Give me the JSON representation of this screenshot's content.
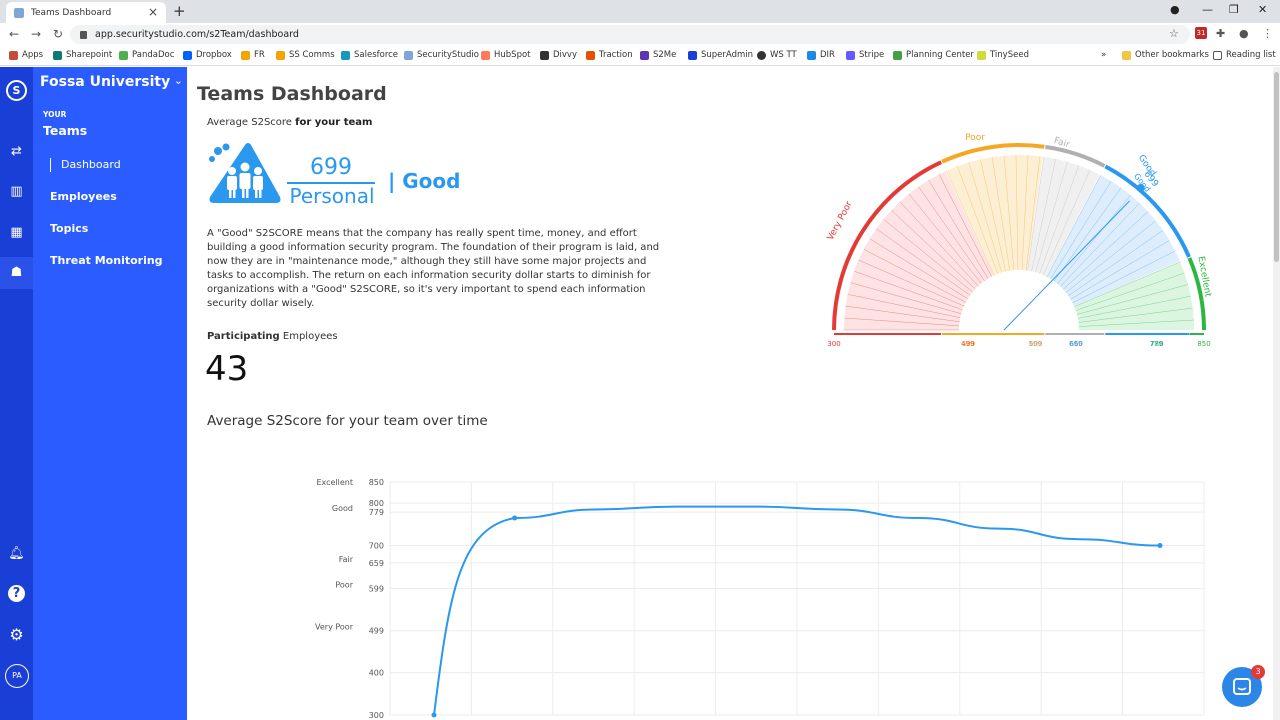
{
  "browser": {
    "tab_title": "Teams Dashboard",
    "url": "app.securitystudio.com/s2Team/dashboard",
    "bookmarks": [
      "Apps",
      "Sharepoint",
      "PandaDoc",
      "Dropbox",
      "FR",
      "SS Comms",
      "Salesforce",
      "SecurityStudio",
      "HubSpot",
      "Divvy",
      "Traction",
      "S2Me",
      "SuperAdmin",
      "WS TT",
      "DIR",
      "Stripe",
      "Planning Center",
      "TinySeed"
    ],
    "other_bookmarks": "Other bookmarks",
    "reading_list": "Reading list",
    "ext_badge": "31"
  },
  "sidebar": {
    "org": "Fossa University",
    "section_small": "YOUR",
    "section": "Teams",
    "items": [
      "Dashboard",
      "Employees",
      "Topics",
      "Threat Monitoring"
    ],
    "avatar": "PA"
  },
  "main": {
    "title": "Teams Dashboard",
    "avg_label_plain": "Average S2Score",
    "avg_label_bold": "for your team",
    "score": "699",
    "score_category": "Personal",
    "score_rating": "| Good",
    "description": "A \"Good\" S2SCORE means that the company has really spent time, money, and effort building a good information security program. The foundation of their program is laid, and now they are in \"maintenance mode,\" although they still have some major projects and tasks to accomplish. The return on each information security dollar starts to diminish for organizations with a \"Good\" S2SCORE, so it's very important to spend each information security dollar wisely.",
    "participating_bold": "Participating",
    "participating_plain": "Employees",
    "participating_count": "43",
    "chart_title": "Average S2Score for your team over time"
  },
  "gauge": {
    "value": 699,
    "value_label": "699",
    "value_rating": "Good",
    "min": 300,
    "max": 850,
    "bands": [
      {
        "label": "Very Poor",
        "from": 300,
        "to": 499,
        "color": "#e53935"
      },
      {
        "label": "Poor",
        "from": 500,
        "to": 599,
        "color": "#f5a623"
      },
      {
        "label": "Fair",
        "from": 600,
        "to": 659,
        "color": "#b0b0b0"
      },
      {
        "label": "Good",
        "from": 660,
        "to": 779,
        "color": "#2b98f0"
      },
      {
        "label": "Excellent",
        "from": 780,
        "to": 850,
        "color": "#2db742"
      }
    ],
    "ticks": [
      "300",
      "499",
      "500",
      "599",
      "600",
      "659",
      "660",
      "779",
      "780",
      "850"
    ]
  },
  "chart_data": {
    "type": "line",
    "y_ticks": [
      300,
      400,
      499,
      599,
      659,
      700,
      779,
      800,
      850
    ],
    "y_category_labels": [
      {
        "label": "Excellent",
        "value": 850
      },
      {
        "label": "Good",
        "value": 779
      },
      {
        "label": "Fair",
        "value": 659
      },
      {
        "label": "Poor",
        "value": 599
      },
      {
        "label": "Very Poor",
        "value": 499
      }
    ],
    "ylim": [
      300,
      850
    ],
    "x_count": 10,
    "points": [
      {
        "x": 0,
        "y": 300
      },
      {
        "x": 1,
        "y": 765
      },
      {
        "x": 2,
        "y": 785
      },
      {
        "x": 3,
        "y": 792
      },
      {
        "x": 4,
        "y": 792
      },
      {
        "x": 5,
        "y": 785
      },
      {
        "x": 6,
        "y": 765
      },
      {
        "x": 7,
        "y": 740
      },
      {
        "x": 8,
        "y": 715
      },
      {
        "x": 9,
        "y": 700
      }
    ],
    "marker_indices": [
      0,
      1,
      9
    ],
    "color": "#2b98f0",
    "grid": true
  },
  "chat": {
    "badge": "3"
  },
  "colors": {
    "rail": "#1a3fd6",
    "sidebar": "#2b5cff",
    "accent": "#2b98f0"
  }
}
